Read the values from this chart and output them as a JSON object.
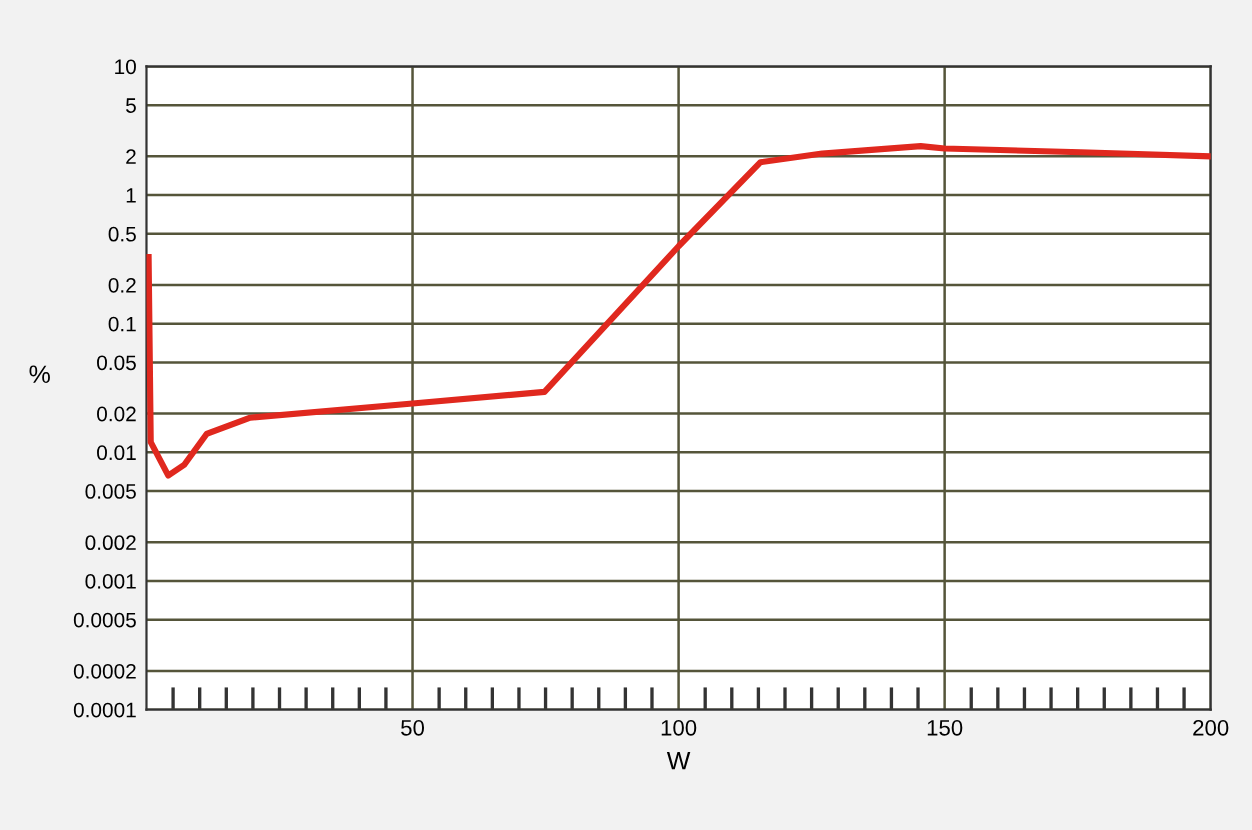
{
  "chart_data": {
    "type": "line",
    "xlabel": "W",
    "ylabel": "%",
    "log": "y",
    "x": [
      0.4,
      0.8,
      4.1,
      7.1,
      11.3,
      19.5,
      50,
      74.8,
      100,
      115.4,
      127,
      145.5,
      150,
      175.6,
      200
    ],
    "series": [
      {
        "color": "#e0281e",
        "values": [
          0.33,
          0.012,
          0.0066,
          0.008,
          0.0139,
          0.0186,
          0.024,
          0.0295,
          0.4,
          1.8,
          2.1,
          2.4,
          2.3,
          2.15,
          2.0
        ]
      }
    ],
    "xlim": [
      0,
      200
    ],
    "ylim": [
      0.0001,
      10
    ],
    "xticks": [
      {
        "value": 5,
        "label": null
      },
      {
        "value": 10,
        "label": null
      },
      {
        "value": 15,
        "label": null
      },
      {
        "value": 20,
        "label": null
      },
      {
        "value": 25,
        "label": null
      },
      {
        "value": 30,
        "label": null
      },
      {
        "value": 35,
        "label": null
      },
      {
        "value": 40,
        "label": null
      },
      {
        "value": 45,
        "label": null
      },
      50,
      {
        "value": 55,
        "label": null
      },
      {
        "value": 60,
        "label": null
      },
      {
        "value": 65,
        "label": null
      },
      {
        "value": 70,
        "label": null
      },
      {
        "value": 75,
        "label": null
      },
      {
        "value": 80,
        "label": null
      },
      {
        "value": 85,
        "label": null
      },
      {
        "value": 90,
        "label": null
      },
      {
        "value": 95,
        "label": null
      },
      100,
      {
        "value": 105,
        "label": null
      },
      {
        "value": 110,
        "label": null
      },
      {
        "value": 115,
        "label": null
      },
      {
        "value": 120,
        "label": null
      },
      {
        "value": 125,
        "label": null
      },
      {
        "value": 130,
        "label": null
      },
      {
        "value": 135,
        "label": null
      },
      {
        "value": 140,
        "label": null
      },
      {
        "value": 145,
        "label": null
      },
      150,
      {
        "value": 155,
        "label": null
      },
      {
        "value": 160,
        "label": null
      },
      {
        "value": 165,
        "label": null
      },
      {
        "value": 170,
        "label": null
      },
      {
        "value": 175,
        "label": null
      },
      {
        "value": 180,
        "label": null
      },
      {
        "value": 185,
        "label": null
      },
      {
        "value": 190,
        "label": null
      },
      {
        "value": 195,
        "label": null
      },
      200
    ],
    "yticks": [
      0.0001,
      0.0002,
      0.0005,
      0.001,
      0.002,
      0.005,
      0.01,
      0.02,
      0.05,
      0.1,
      0.2,
      0.5,
      1,
      2,
      5,
      10
    ],
    "grid": true,
    "marker": "none",
    "line_style": "solid"
  }
}
